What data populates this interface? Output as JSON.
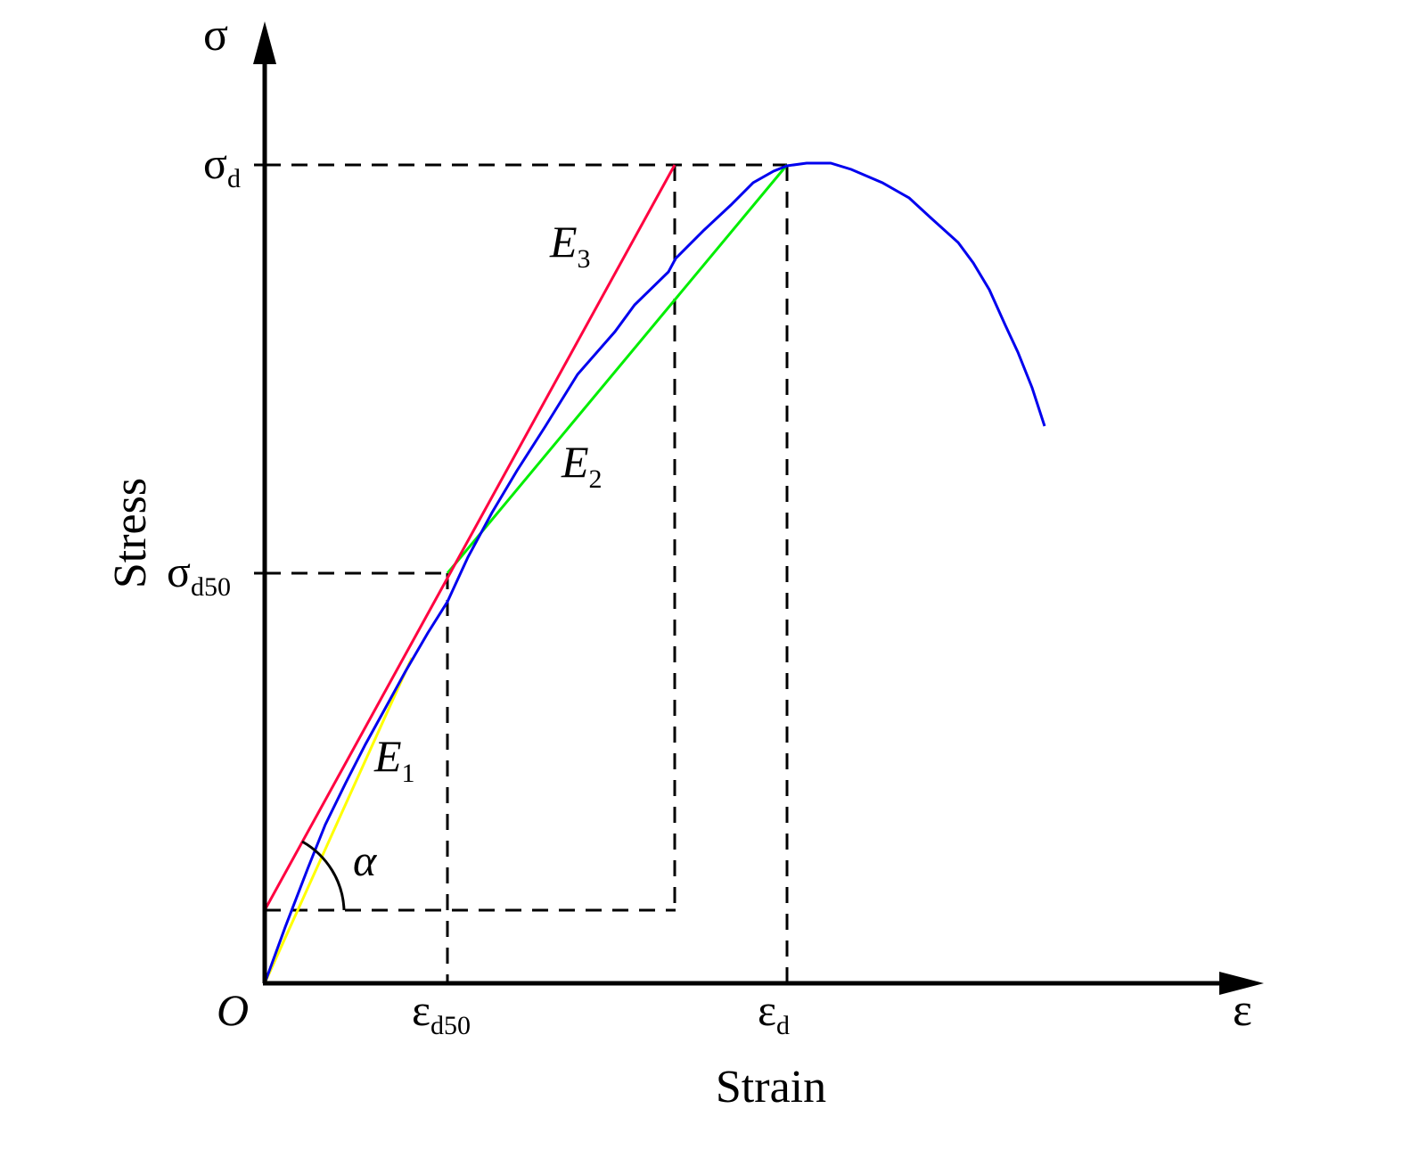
{
  "chart_data": {
    "type": "line",
    "title": "",
    "xlabel": "Strain",
    "ylabel": "Stress",
    "x_axis_symbol": "ε",
    "y_axis_symbol": "σ",
    "origin_label": "O",
    "angle_label": "α",
    "x_ticks": [
      {
        "base": "ε",
        "sub": "d50"
      },
      {
        "base": "ε",
        "sub": "d"
      }
    ],
    "y_ticks": [
      {
        "base": "σ",
        "sub": "d"
      },
      {
        "base": "σ",
        "sub": "d50"
      }
    ],
    "moduli": [
      {
        "base": "E",
        "sub": "1",
        "color": "#ffff00"
      },
      {
        "base": "E",
        "sub": "2",
        "color": "#00ee00"
      },
      {
        "base": "E",
        "sub": "3",
        "color": "#ff0040"
      }
    ],
    "curve_color": "#0000ee",
    "colors": {
      "axis": "#000000",
      "dash": "#000000"
    }
  }
}
